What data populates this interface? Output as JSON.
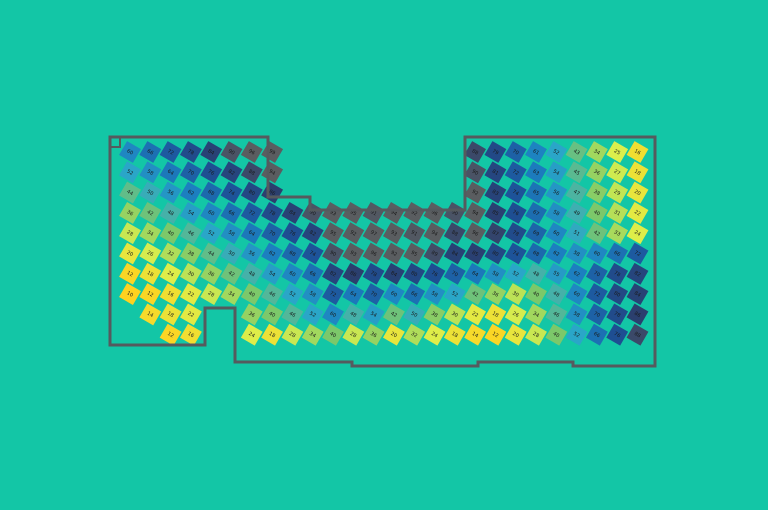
{
  "heatmap": {
    "colorscale": [
      {
        "value": 10,
        "color": "#ffd21f"
      },
      {
        "value": 25,
        "color": "#dcef4c"
      },
      {
        "value": 40,
        "color": "#7cc86a"
      },
      {
        "value": 52,
        "color": "#2aa6c8"
      },
      {
        "value": 62,
        "color": "#1c7fc0"
      },
      {
        "value": 75,
        "color": "#1d4f96"
      },
      {
        "value": 86,
        "color": "#2b3f6e"
      },
      {
        "value": 92,
        "color": "#5a5d60"
      }
    ],
    "rows": [
      [
        60,
        66,
        72,
        78,
        84,
        90,
        96,
        99,
        null,
        null,
        null,
        null,
        null,
        null,
        null,
        null,
        null,
        88,
        79,
        70,
        61,
        52,
        43,
        34,
        25,
        16
      ],
      [
        52,
        58,
        64,
        70,
        76,
        82,
        88,
        94,
        null,
        null,
        null,
        null,
        null,
        null,
        null,
        null,
        null,
        90,
        81,
        72,
        63,
        54,
        45,
        36,
        27,
        18
      ],
      [
        44,
        50,
        56,
        62,
        68,
        74,
        80,
        86,
        null,
        null,
        null,
        null,
        null,
        null,
        null,
        null,
        null,
        92,
        83,
        74,
        65,
        56,
        47,
        38,
        29,
        20
      ],
      [
        36,
        42,
        48,
        54,
        60,
        66,
        72,
        78,
        84,
        90,
        93,
        95,
        91,
        94,
        92,
        96,
        90,
        94,
        85,
        76,
        67,
        58,
        49,
        40,
        31,
        22
      ],
      [
        28,
        34,
        40,
        46,
        52,
        58,
        64,
        70,
        76,
        82,
        95,
        92,
        97,
        93,
        91,
        94,
        88,
        96,
        87,
        78,
        69,
        60,
        51,
        42,
        33,
        24
      ],
      [
        20,
        26,
        32,
        38,
        44,
        50,
        56,
        62,
        68,
        74,
        90,
        93,
        96,
        92,
        95,
        89,
        84,
        85,
        80,
        74,
        68,
        62,
        58,
        60,
        66,
        72
      ],
      [
        12,
        18,
        24,
        30,
        36,
        42,
        48,
        54,
        60,
        66,
        82,
        86,
        78,
        84,
        80,
        76,
        70,
        64,
        58,
        52,
        48,
        55,
        62,
        70,
        78,
        82
      ],
      [
        10,
        12,
        16,
        22,
        28,
        34,
        40,
        46,
        52,
        58,
        72,
        64,
        70,
        60,
        66,
        58,
        52,
        42,
        36,
        30,
        40,
        48,
        60,
        72,
        80,
        84
      ],
      [
        null,
        14,
        18,
        22,
        null,
        null,
        36,
        40,
        46,
        52,
        60,
        48,
        54,
        42,
        50,
        38,
        30,
        22,
        18,
        26,
        34,
        46,
        58,
        70,
        78,
        86
      ],
      [
        null,
        null,
        12,
        16,
        null,
        null,
        24,
        18,
        28,
        34,
        40,
        28,
        36,
        20,
        32,
        24,
        18,
        14,
        12,
        20,
        28,
        40,
        52,
        66,
        76,
        88
      ]
    ]
  }
}
